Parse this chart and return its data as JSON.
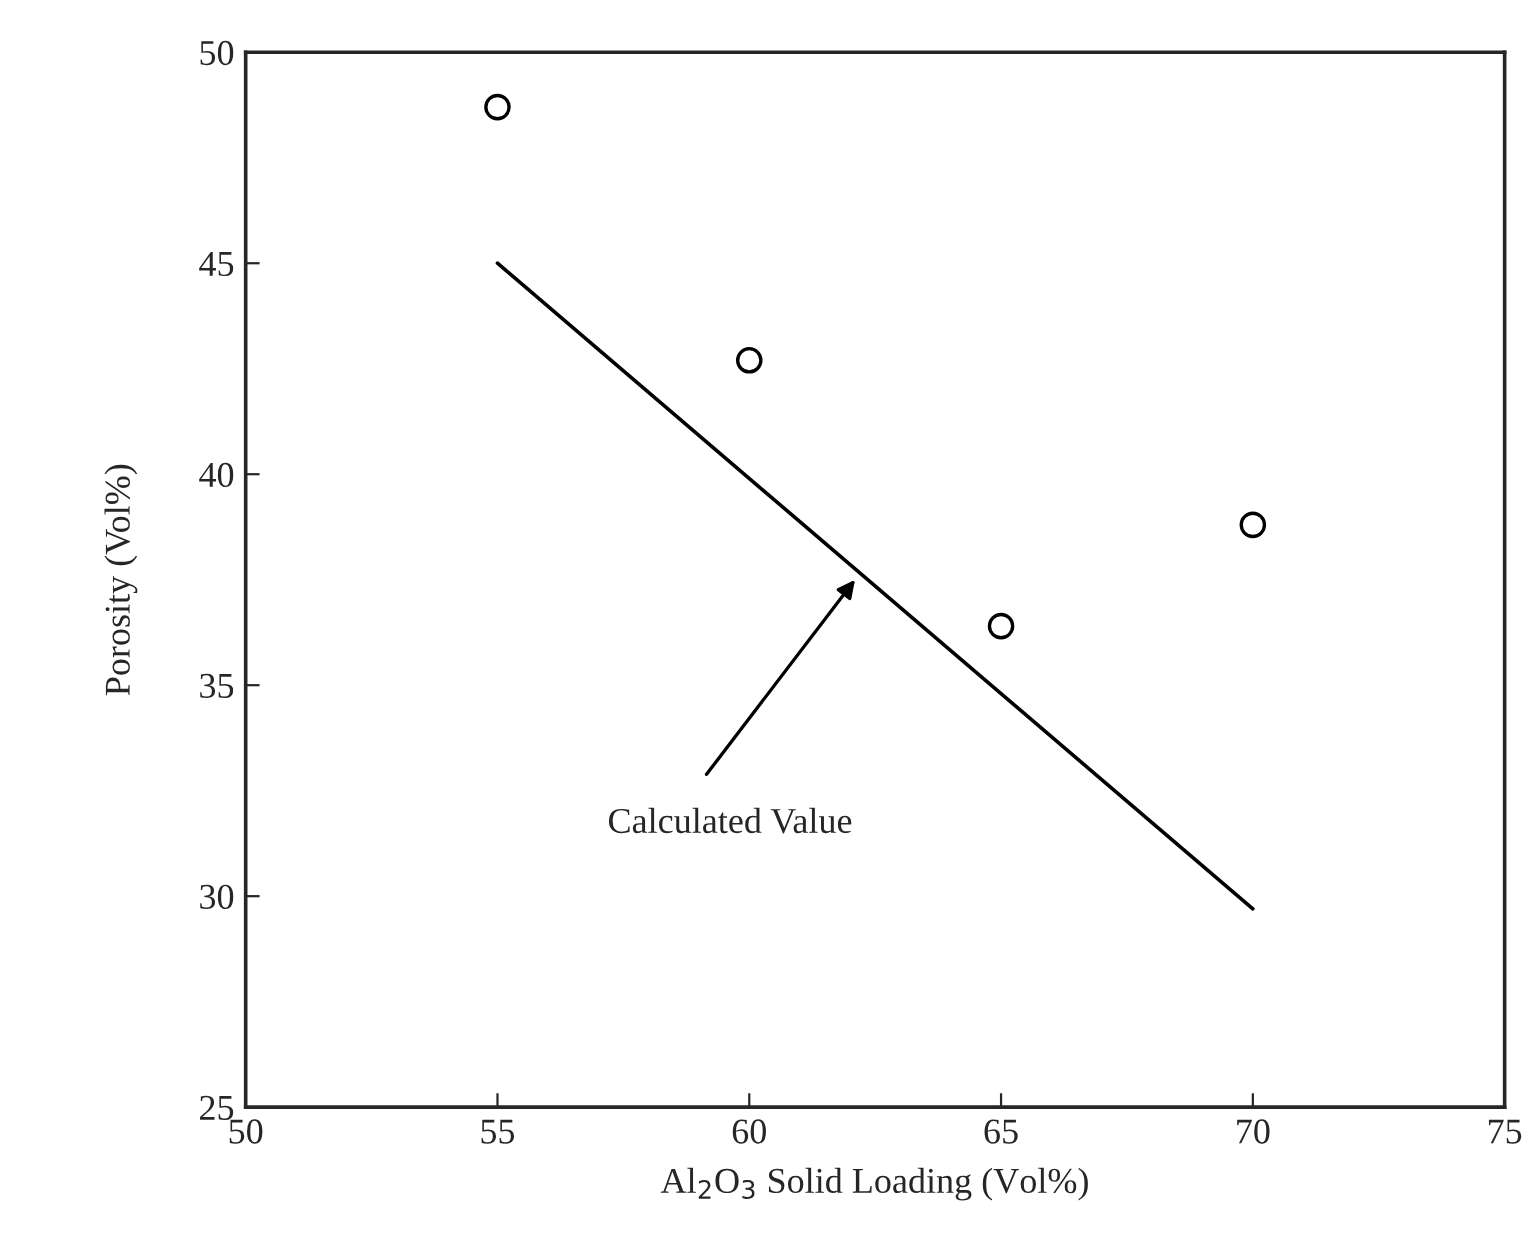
{
  "chart_data": {
    "type": "scatter",
    "xlabel": "Al$_{2}$O$_{3}$ Solid Loading (Vol%)",
    "ylabel": "Porosity (Vol%)",
    "series": [
      {
        "color": "#000000",
        "marker": "circle",
        "x": [
          55,
          60,
          65,
          70
        ],
        "values": [
          48.7,
          42.7,
          36.4,
          38.8
        ]
      },
      {
        "type": "line",
        "color": "#000000",
        "marker": "none",
        "line_style": "solid",
        "x": [
          55,
          70
        ],
        "values": [
          45,
          29.7
        ]
      }
    ],
    "annotations": [
      {
        "text": "Calculated Value",
        "x": 62.1,
        "y": 37.5
      }
    ],
    "xlim": [
      50,
      75
    ],
    "xticks": [
      50,
      55,
      60,
      65,
      70,
      75
    ],
    "ylim": [
      25,
      50
    ],
    "yticks": [
      25,
      30,
      35,
      40,
      45,
      50
    ],
    "grid": false,
    "legend": false
  }
}
